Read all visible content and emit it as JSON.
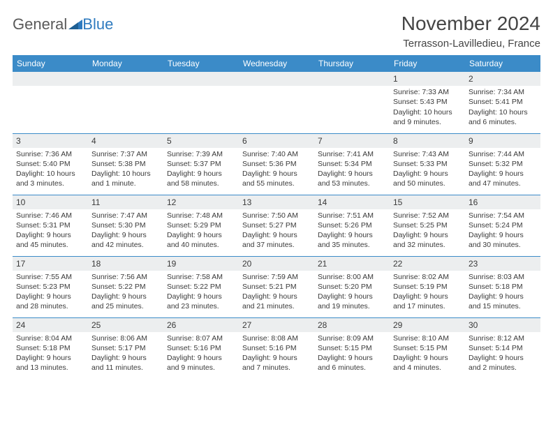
{
  "brand": {
    "part1": "General",
    "part2": "Blue"
  },
  "title": "November 2024",
  "location": "Terrasson-Lavilledieu, France",
  "colors": {
    "header_bg": "#3b8bc8",
    "header_text": "#ffffff",
    "daybar_bg": "#eceeef",
    "text": "#3a3a3a",
    "rule": "#3b8bc8"
  },
  "weekdays": [
    "Sunday",
    "Monday",
    "Tuesday",
    "Wednesday",
    "Thursday",
    "Friday",
    "Saturday"
  ],
  "weeks": [
    [
      null,
      null,
      null,
      null,
      null,
      {
        "n": "1",
        "sr": "7:33 AM",
        "ss": "5:43 PM",
        "dl": "10 hours and 9 minutes."
      },
      {
        "n": "2",
        "sr": "7:34 AM",
        "ss": "5:41 PM",
        "dl": "10 hours and 6 minutes."
      }
    ],
    [
      {
        "n": "3",
        "sr": "7:36 AM",
        "ss": "5:40 PM",
        "dl": "10 hours and 3 minutes."
      },
      {
        "n": "4",
        "sr": "7:37 AM",
        "ss": "5:38 PM",
        "dl": "10 hours and 1 minute."
      },
      {
        "n": "5",
        "sr": "7:39 AM",
        "ss": "5:37 PM",
        "dl": "9 hours and 58 minutes."
      },
      {
        "n": "6",
        "sr": "7:40 AM",
        "ss": "5:36 PM",
        "dl": "9 hours and 55 minutes."
      },
      {
        "n": "7",
        "sr": "7:41 AM",
        "ss": "5:34 PM",
        "dl": "9 hours and 53 minutes."
      },
      {
        "n": "8",
        "sr": "7:43 AM",
        "ss": "5:33 PM",
        "dl": "9 hours and 50 minutes."
      },
      {
        "n": "9",
        "sr": "7:44 AM",
        "ss": "5:32 PM",
        "dl": "9 hours and 47 minutes."
      }
    ],
    [
      {
        "n": "10",
        "sr": "7:46 AM",
        "ss": "5:31 PM",
        "dl": "9 hours and 45 minutes."
      },
      {
        "n": "11",
        "sr": "7:47 AM",
        "ss": "5:30 PM",
        "dl": "9 hours and 42 minutes."
      },
      {
        "n": "12",
        "sr": "7:48 AM",
        "ss": "5:29 PM",
        "dl": "9 hours and 40 minutes."
      },
      {
        "n": "13",
        "sr": "7:50 AM",
        "ss": "5:27 PM",
        "dl": "9 hours and 37 minutes."
      },
      {
        "n": "14",
        "sr": "7:51 AM",
        "ss": "5:26 PM",
        "dl": "9 hours and 35 minutes."
      },
      {
        "n": "15",
        "sr": "7:52 AM",
        "ss": "5:25 PM",
        "dl": "9 hours and 32 minutes."
      },
      {
        "n": "16",
        "sr": "7:54 AM",
        "ss": "5:24 PM",
        "dl": "9 hours and 30 minutes."
      }
    ],
    [
      {
        "n": "17",
        "sr": "7:55 AM",
        "ss": "5:23 PM",
        "dl": "9 hours and 28 minutes."
      },
      {
        "n": "18",
        "sr": "7:56 AM",
        "ss": "5:22 PM",
        "dl": "9 hours and 25 minutes."
      },
      {
        "n": "19",
        "sr": "7:58 AM",
        "ss": "5:22 PM",
        "dl": "9 hours and 23 minutes."
      },
      {
        "n": "20",
        "sr": "7:59 AM",
        "ss": "5:21 PM",
        "dl": "9 hours and 21 minutes."
      },
      {
        "n": "21",
        "sr": "8:00 AM",
        "ss": "5:20 PM",
        "dl": "9 hours and 19 minutes."
      },
      {
        "n": "22",
        "sr": "8:02 AM",
        "ss": "5:19 PM",
        "dl": "9 hours and 17 minutes."
      },
      {
        "n": "23",
        "sr": "8:03 AM",
        "ss": "5:18 PM",
        "dl": "9 hours and 15 minutes."
      }
    ],
    [
      {
        "n": "24",
        "sr": "8:04 AM",
        "ss": "5:18 PM",
        "dl": "9 hours and 13 minutes."
      },
      {
        "n": "25",
        "sr": "8:06 AM",
        "ss": "5:17 PM",
        "dl": "9 hours and 11 minutes."
      },
      {
        "n": "26",
        "sr": "8:07 AM",
        "ss": "5:16 PM",
        "dl": "9 hours and 9 minutes."
      },
      {
        "n": "27",
        "sr": "8:08 AM",
        "ss": "5:16 PM",
        "dl": "9 hours and 7 minutes."
      },
      {
        "n": "28",
        "sr": "8:09 AM",
        "ss": "5:15 PM",
        "dl": "9 hours and 6 minutes."
      },
      {
        "n": "29",
        "sr": "8:10 AM",
        "ss": "5:15 PM",
        "dl": "9 hours and 4 minutes."
      },
      {
        "n": "30",
        "sr": "8:12 AM",
        "ss": "5:14 PM",
        "dl": "9 hours and 2 minutes."
      }
    ]
  ],
  "labels": {
    "sunrise": "Sunrise:",
    "sunset": "Sunset:",
    "daylight": "Daylight:"
  }
}
